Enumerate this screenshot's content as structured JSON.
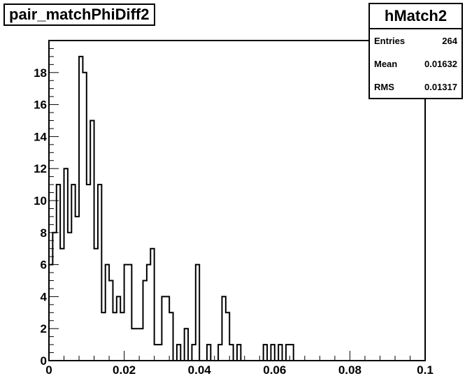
{
  "chart_data": {
    "type": "bar",
    "title": "pair_matchPhiDiff2",
    "xlabel": "",
    "ylabel": "",
    "xlim": [
      0,
      0.1
    ],
    "ylim": [
      0,
      20
    ],
    "bin_width": 0.001,
    "x_ticks": [
      "0",
      "0.02",
      "0.04",
      "0.06",
      "0.08",
      "0.1"
    ],
    "y_ticks": [
      "0",
      "2",
      "4",
      "6",
      "8",
      "10",
      "12",
      "14",
      "16",
      "18"
    ],
    "bin_low_edges": [
      0.0,
      0.001,
      0.002,
      0.003,
      0.004,
      0.005,
      0.006,
      0.007,
      0.008,
      0.009,
      0.01,
      0.011,
      0.012,
      0.013,
      0.014,
      0.015,
      0.016,
      0.017,
      0.018,
      0.019,
      0.02,
      0.021,
      0.022,
      0.023,
      0.024,
      0.025,
      0.026,
      0.027,
      0.028,
      0.029,
      0.03,
      0.031,
      0.032,
      0.033,
      0.034,
      0.035,
      0.036,
      0.037,
      0.038,
      0.039,
      0.04,
      0.041,
      0.042,
      0.043,
      0.044,
      0.045,
      0.046,
      0.047,
      0.048,
      0.049,
      0.05,
      0.051,
      0.052,
      0.053,
      0.054,
      0.055,
      0.056,
      0.057,
      0.058,
      0.059,
      0.06,
      0.061,
      0.062,
      0.063,
      0.064,
      0.065
    ],
    "values": [
      6,
      8,
      11,
      7,
      12,
      8,
      11,
      9,
      19,
      18,
      11,
      15,
      7,
      11,
      3,
      6,
      5,
      3,
      4,
      3,
      6,
      6,
      2,
      2,
      2,
      5,
      6,
      7,
      1,
      1,
      4,
      4,
      3,
      0,
      1,
      0,
      2,
      0,
      1,
      6,
      0,
      0,
      1,
      0,
      0,
      1,
      4,
      3,
      1,
      0,
      1,
      0,
      0,
      0,
      0,
      0,
      0,
      1,
      0,
      1,
      0,
      1,
      0,
      1,
      1,
      0
    ],
    "grid": false,
    "legend": "none"
  },
  "stats": {
    "name": "hMatch2",
    "rows": [
      {
        "label": "Entries",
        "value": "264"
      },
      {
        "label": "Mean",
        "value": "0.01632"
      },
      {
        "label": "RMS",
        "value": "0.01317"
      }
    ]
  }
}
